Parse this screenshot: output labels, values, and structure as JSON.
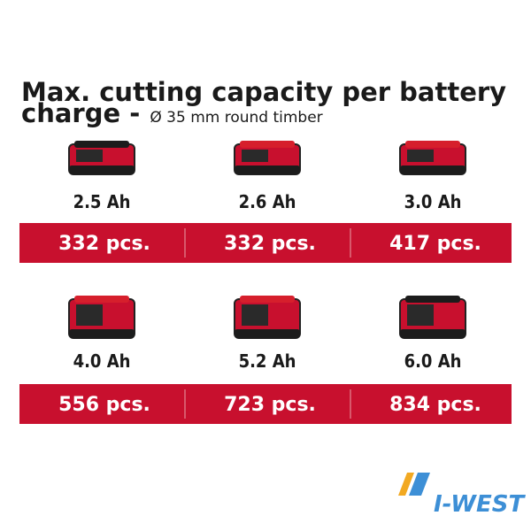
{
  "header": {
    "title": "Max. cutting capacity per battery",
    "title_line2": "charge -",
    "subtitle": "Ø 35 mm round timber"
  },
  "rows": [
    {
      "items": [
        {
          "capacity": "2.5 Ah",
          "result": "332 pcs."
        },
        {
          "capacity": "2.6 Ah",
          "result": "332 pcs."
        },
        {
          "capacity": "3.0 Ah",
          "result": "417 pcs."
        }
      ]
    },
    {
      "items": [
        {
          "capacity": "4.0 Ah",
          "result": "556 pcs."
        },
        {
          "capacity": "5.2 Ah",
          "result": "723 pcs."
        },
        {
          "capacity": "6.0 Ah",
          "result": "834 pcs."
        }
      ]
    }
  ],
  "watermark": "I-WEST"
}
